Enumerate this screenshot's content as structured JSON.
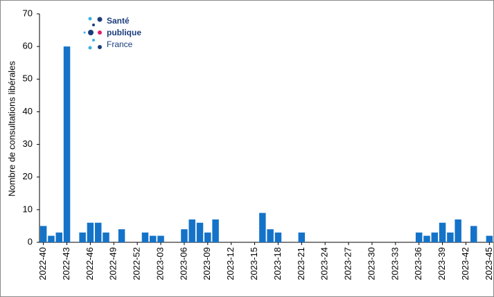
{
  "chart_data": {
    "type": "bar",
    "y_label": "Nombre de consultations libérales",
    "logo": [
      "Santé",
      "publique",
      "France"
    ],
    "categories": [
      "2022-40",
      null,
      null,
      "2022-43",
      null,
      null,
      "2022-46",
      null,
      null,
      "2022-49",
      null,
      null,
      "2022-52",
      null,
      null,
      "2023-03",
      null,
      null,
      "2023-06",
      null,
      null,
      "2023-09",
      null,
      null,
      "2023-12",
      null,
      null,
      "2023-15",
      null,
      null,
      "2023-18",
      null,
      null,
      "2023-21",
      null,
      null,
      "2023-24",
      null,
      null,
      "2023-27",
      null,
      null,
      "2023-30",
      null,
      null,
      "2023-33",
      null,
      null,
      "2023-36",
      null,
      null,
      "2023-39",
      null,
      null,
      "2023-42",
      null,
      null,
      "2023-45"
    ],
    "values": [
      5,
      2,
      3,
      60,
      0,
      3,
      6,
      6,
      3,
      0,
      4,
      0,
      0,
      3,
      2,
      2,
      0,
      0,
      4,
      7,
      6,
      3,
      7,
      0,
      0,
      0,
      0,
      0,
      9,
      4,
      3,
      0,
      0,
      3,
      0,
      0,
      0,
      0,
      0,
      0,
      0,
      0,
      0,
      0,
      0,
      0,
      0,
      0,
      3,
      2,
      3,
      6,
      3,
      7,
      0,
      5,
      0,
      2
    ],
    "color": "#1473c8",
    "ylim": [
      0,
      70
    ],
    "yticks": [
      0,
      10,
      20,
      30,
      40,
      50,
      60,
      70
    ]
  }
}
